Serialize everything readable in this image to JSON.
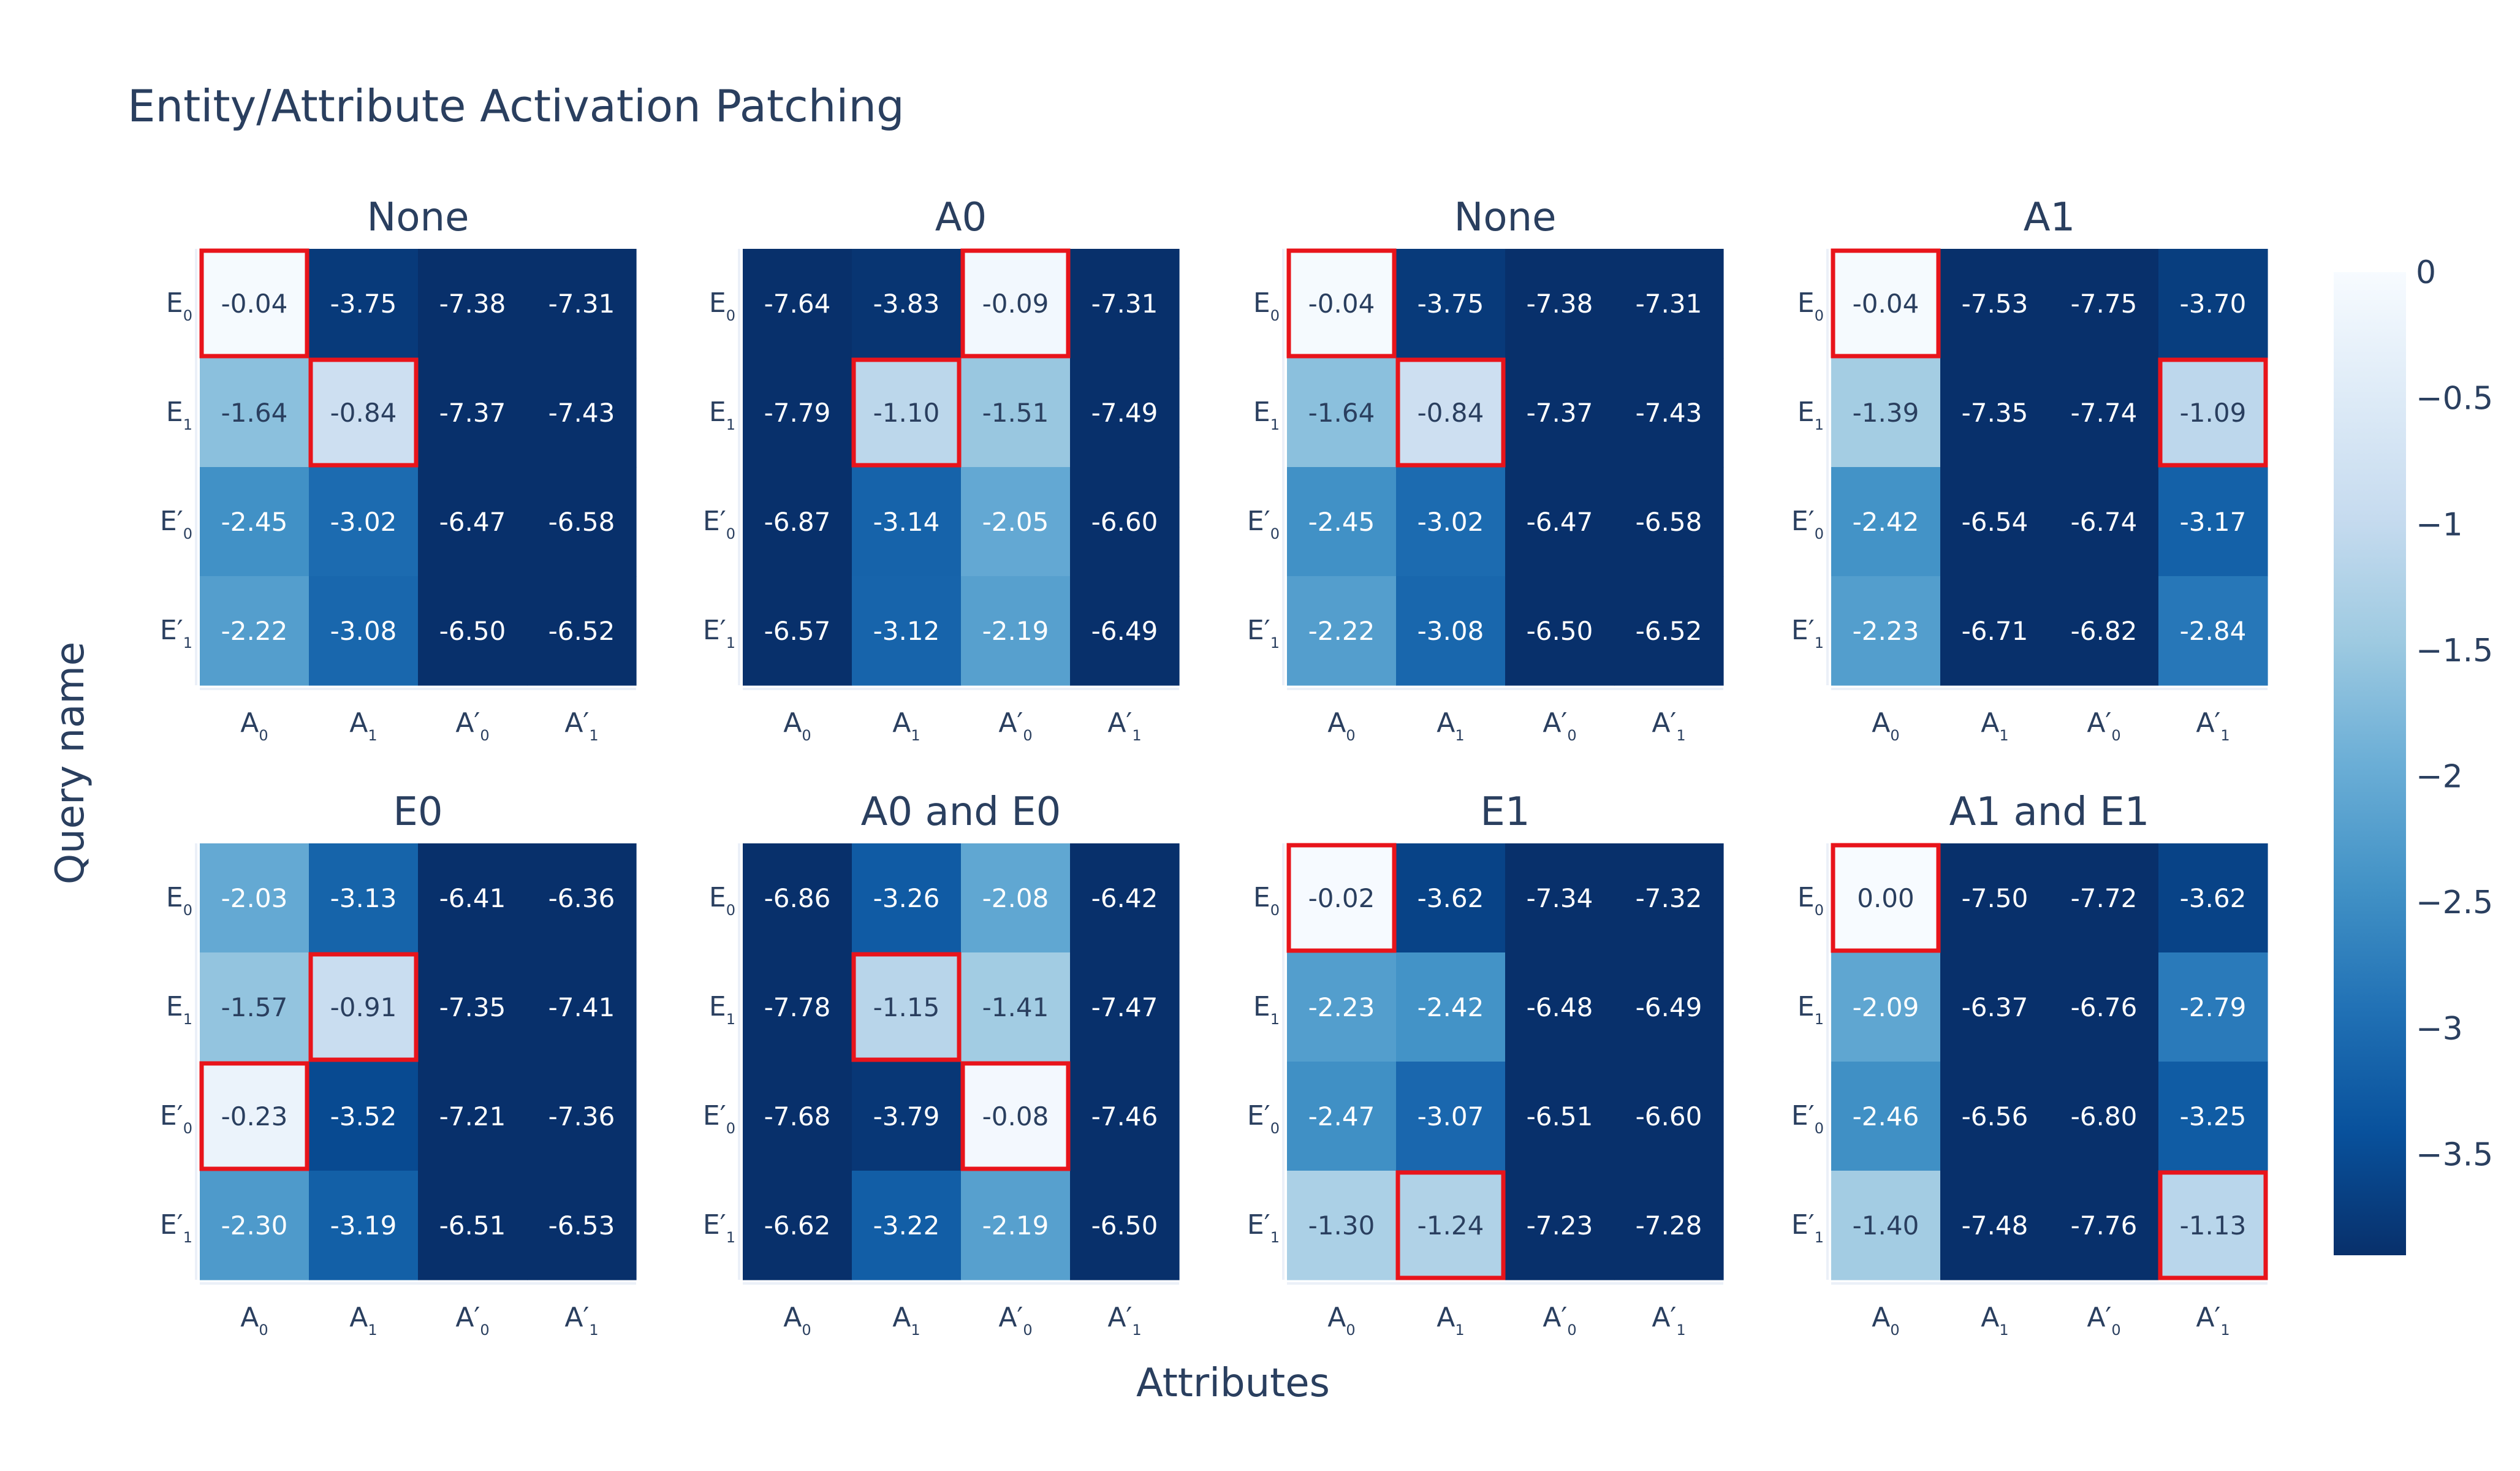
{
  "chart_data": {
    "type": "heatmap",
    "title": "Entity/Attribute Activation Patching",
    "xlabel": "Attributes",
    "ylabel": "Query name",
    "colorscale": "Blues",
    "zrange": [
      -3.9,
      0
    ],
    "colorbar_ticks": [
      "0",
      "−0.5",
      "−1",
      "−1.5",
      "−2",
      "−2.5",
      "−3",
      "−3.5"
    ],
    "colorbar_tick_values": [
      0,
      -0.5,
      -1,
      -1.5,
      -2,
      -2.5,
      -3,
      -3.5
    ],
    "highlight_color": "#e8141b",
    "x_ticks": [
      {
        "main": "A",
        "sub": "0"
      },
      {
        "main": "A",
        "sub": "1"
      },
      {
        "main": "A′",
        "sub": "0"
      },
      {
        "main": "A′",
        "sub": "1"
      }
    ],
    "y_ticks": [
      {
        "main": "E",
        "sub": "0"
      },
      {
        "main": "E",
        "sub": "1"
      },
      {
        "main": "E′",
        "sub": "0"
      },
      {
        "main": "E′",
        "sub": "1"
      }
    ],
    "subplots": [
      {
        "title": "None",
        "values": [
          [
            -0.04,
            -3.75,
            -7.38,
            -7.31
          ],
          [
            -1.64,
            -0.84,
            -7.37,
            -7.43
          ],
          [
            -2.45,
            -3.02,
            -6.47,
            -6.58
          ],
          [
            -2.22,
            -3.08,
            -6.5,
            -6.52
          ]
        ],
        "labels": [
          [
            "-0.04",
            "-3.75",
            "-7.38",
            "-7.31"
          ],
          [
            "-1.64",
            "-0.84",
            "-7.37",
            "-7.43"
          ],
          [
            "-2.45",
            "-3.02",
            "-6.47",
            "-6.58"
          ],
          [
            "-2.22",
            "-3.08",
            "-6.50",
            "-6.52"
          ]
        ],
        "highlights": [
          [
            0,
            0
          ],
          [
            1,
            1
          ]
        ]
      },
      {
        "title": "A0",
        "values": [
          [
            -7.64,
            -3.83,
            -0.09,
            -7.31
          ],
          [
            -7.79,
            -1.1,
            -1.51,
            -7.49
          ],
          [
            -6.87,
            -3.14,
            -2.05,
            -6.6
          ],
          [
            -6.57,
            -3.12,
            -2.19,
            -6.49
          ]
        ],
        "labels": [
          [
            "-7.64",
            "-3.83",
            "-0.09",
            "-7.31"
          ],
          [
            "-7.79",
            "-1.10",
            "-1.51",
            "-7.49"
          ],
          [
            "-6.87",
            "-3.14",
            "-2.05",
            "-6.60"
          ],
          [
            "-6.57",
            "-3.12",
            "-2.19",
            "-6.49"
          ]
        ],
        "highlights": [
          [
            0,
            2
          ],
          [
            1,
            1
          ]
        ]
      },
      {
        "title": "None",
        "values": [
          [
            -0.04,
            -3.75,
            -7.38,
            -7.31
          ],
          [
            -1.64,
            -0.84,
            -7.37,
            -7.43
          ],
          [
            -2.45,
            -3.02,
            -6.47,
            -6.58
          ],
          [
            -2.22,
            -3.08,
            -6.5,
            -6.52
          ]
        ],
        "labels": [
          [
            "-0.04",
            "-3.75",
            "-7.38",
            "-7.31"
          ],
          [
            "-1.64",
            "-0.84",
            "-7.37",
            "-7.43"
          ],
          [
            "-2.45",
            "-3.02",
            "-6.47",
            "-6.58"
          ],
          [
            "-2.22",
            "-3.08",
            "-6.50",
            "-6.52"
          ]
        ],
        "highlights": [
          [
            0,
            0
          ],
          [
            1,
            1
          ]
        ]
      },
      {
        "title": "A1",
        "values": [
          [
            -0.04,
            -7.53,
            -7.75,
            -3.7
          ],
          [
            -1.39,
            -7.35,
            -7.74,
            -1.09
          ],
          [
            -2.42,
            -6.54,
            -6.74,
            -3.17
          ],
          [
            -2.23,
            -6.71,
            -6.82,
            -2.84
          ]
        ],
        "labels": [
          [
            "-0.04",
            "-7.53",
            "-7.75",
            "-3.70"
          ],
          [
            "-1.39",
            "-7.35",
            "-7.74",
            "-1.09"
          ],
          [
            "-2.42",
            "-6.54",
            "-6.74",
            "-3.17"
          ],
          [
            "-2.23",
            "-6.71",
            "-6.82",
            "-2.84"
          ]
        ],
        "highlights": [
          [
            0,
            0
          ],
          [
            1,
            3
          ]
        ]
      },
      {
        "title": "E0",
        "values": [
          [
            -2.03,
            -3.13,
            -6.41,
            -6.36
          ],
          [
            -1.57,
            -0.91,
            -7.35,
            -7.41
          ],
          [
            -0.23,
            -3.52,
            -7.21,
            -7.36
          ],
          [
            -2.3,
            -3.19,
            -6.51,
            -6.53
          ]
        ],
        "labels": [
          [
            "-2.03",
            "-3.13",
            "-6.41",
            "-6.36"
          ],
          [
            "-1.57",
            "-0.91",
            "-7.35",
            "-7.41"
          ],
          [
            "-0.23",
            "-3.52",
            "-7.21",
            "-7.36"
          ],
          [
            "-2.30",
            "-3.19",
            "-6.51",
            "-6.53"
          ]
        ],
        "highlights": [
          [
            2,
            0
          ],
          [
            1,
            1
          ]
        ]
      },
      {
        "title": "A0 and E0",
        "values": [
          [
            -6.86,
            -3.26,
            -2.08,
            -6.42
          ],
          [
            -7.78,
            -1.15,
            -1.41,
            -7.47
          ],
          [
            -7.68,
            -3.79,
            -0.08,
            -7.46
          ],
          [
            -6.62,
            -3.22,
            -2.19,
            -6.5
          ]
        ],
        "labels": [
          [
            "-6.86",
            "-3.26",
            "-2.08",
            "-6.42"
          ],
          [
            "-7.78",
            "-1.15",
            "-1.41",
            "-7.47"
          ],
          [
            "-7.68",
            "-3.79",
            "-0.08",
            "-7.46"
          ],
          [
            "-6.62",
            "-3.22",
            "-2.19",
            "-6.50"
          ]
        ],
        "highlights": [
          [
            2,
            2
          ],
          [
            1,
            1
          ]
        ]
      },
      {
        "title": "E1",
        "values": [
          [
            -0.02,
            -3.62,
            -7.34,
            -7.32
          ],
          [
            -2.23,
            -2.42,
            -6.48,
            -6.49
          ],
          [
            -2.47,
            -3.07,
            -6.51,
            -6.6
          ],
          [
            -1.3,
            -1.24,
            -7.23,
            -7.28
          ]
        ],
        "labels": [
          [
            "-0.02",
            "-3.62",
            "-7.34",
            "-7.32"
          ],
          [
            "-2.23",
            "-2.42",
            "-6.48",
            "-6.49"
          ],
          [
            "-2.47",
            "-3.07",
            "-6.51",
            "-6.60"
          ],
          [
            "-1.30",
            "-1.24",
            "-7.23",
            "-7.28"
          ]
        ],
        "highlights": [
          [
            0,
            0
          ],
          [
            3,
            1
          ]
        ]
      },
      {
        "title": "A1 and E1",
        "values": [
          [
            0.0,
            -7.5,
            -7.72,
            -3.62
          ],
          [
            -2.09,
            -6.37,
            -6.76,
            -2.79
          ],
          [
            -2.46,
            -6.56,
            -6.8,
            -3.25
          ],
          [
            -1.4,
            -7.48,
            -7.76,
            -1.13
          ]
        ],
        "labels": [
          [
            "0.00",
            "-7.50",
            "-7.72",
            "-3.62"
          ],
          [
            "-2.09",
            "-6.37",
            "-6.76",
            "-2.79"
          ],
          [
            "-2.46",
            "-6.56",
            "-6.80",
            "-3.25"
          ],
          [
            "-1.40",
            "-7.48",
            "-7.76",
            "-1.13"
          ]
        ],
        "highlights": [
          [
            0,
            0
          ],
          [
            3,
            3
          ]
        ]
      }
    ]
  }
}
